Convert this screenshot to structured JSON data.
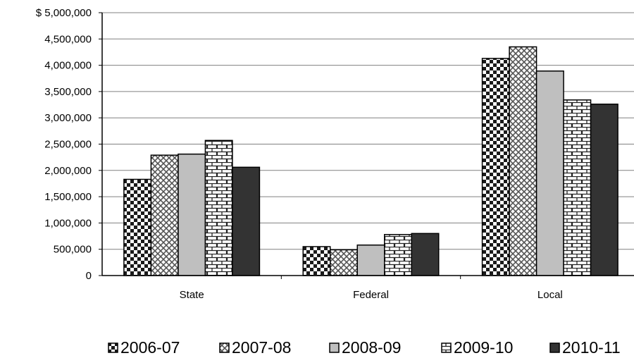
{
  "chart_data": {
    "type": "bar",
    "categories": [
      "State",
      "Federal",
      "Local"
    ],
    "series": [
      {
        "name": "2006-07",
        "values": [
          1830000,
          550000,
          4130000
        ]
      },
      {
        "name": "2007-08",
        "values": [
          2290000,
          490000,
          4350000
        ]
      },
      {
        "name": "2008-09",
        "values": [
          2310000,
          580000,
          3890000
        ]
      },
      {
        "name": "2009-10",
        "values": [
          2570000,
          780000,
          3340000
        ]
      },
      {
        "name": "2010-11",
        "values": [
          2060000,
          800000,
          3260000
        ]
      }
    ],
    "y_ticks": [
      "0",
      "500,000",
      "1,000,000",
      "1,500,000",
      "2,000,000",
      "2,500,000",
      "3,000,000",
      "3,500,000",
      "4,000,000",
      "4,500,000",
      "$ 5,000,000"
    ],
    "ylim": [
      0,
      5000000
    ],
    "grid": true,
    "legend_position": "bottom",
    "colors": {
      "2006-07": "checkerboard",
      "2007-08": "diagonal-crosshatch",
      "2008-09": "#bfbfbf",
      "2009-10": "brick",
      "2010-11": "#333333"
    }
  }
}
